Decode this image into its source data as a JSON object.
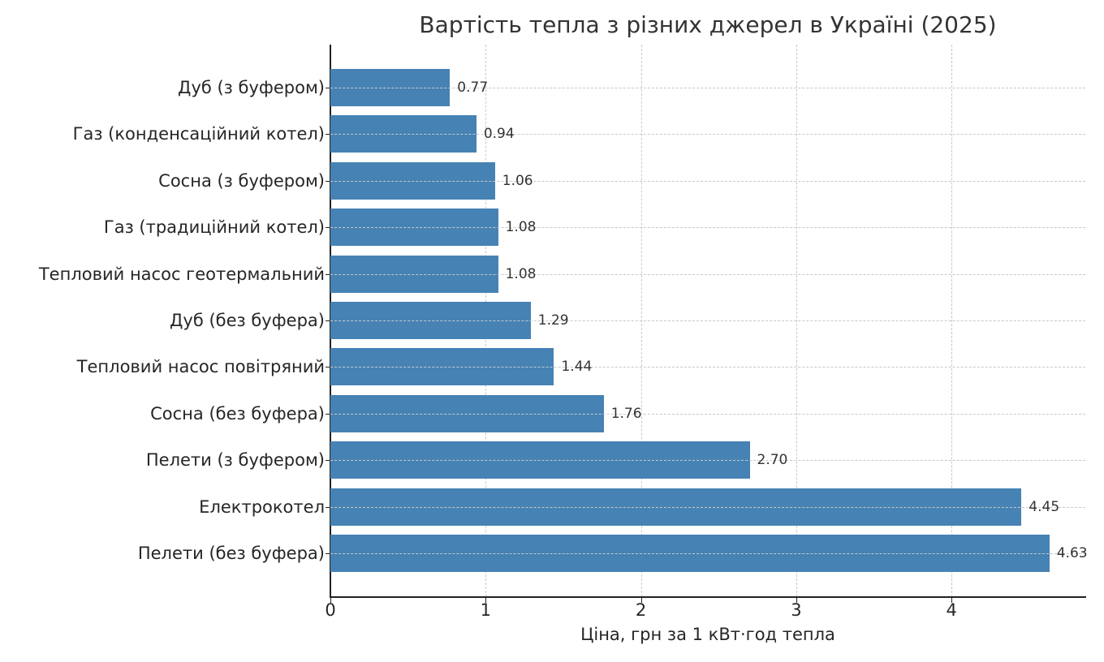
{
  "chart_data": {
    "type": "bar",
    "orientation": "horizontal",
    "title": "Вартість тепла з різних джерел в Україні (2025)",
    "xlabel": "Ціна, грн за 1 кВт·год тепла",
    "ylabel": "",
    "xlim": [
      0,
      4.86
    ],
    "xticks": [
      "0",
      "1",
      "2",
      "3",
      "4"
    ],
    "grid": true,
    "legend": null,
    "bar_color": "#4682b4",
    "categories": [
      "Дуб (з буфером)",
      "Газ (конденсаційний котел)",
      "Сосна (з буфером)",
      "Газ (традиційний котел)",
      "Тепловий насос геотермальний",
      "Дуб (без буфера)",
      "Тепловий насос повітряний",
      "Сосна (без буфера)",
      "Пелети (з буфером)",
      "Електрокотел",
      "Пелети (без буфера)"
    ],
    "values": [
      0.77,
      0.94,
      1.06,
      1.08,
      1.08,
      1.29,
      1.44,
      1.76,
      2.7,
      4.45,
      4.63
    ],
    "value_labels": [
      "0.77",
      "0.94",
      "1.06",
      "1.08",
      "1.08",
      "1.29",
      "1.44",
      "1.76",
      "2.70",
      "4.45",
      "4.63"
    ]
  }
}
